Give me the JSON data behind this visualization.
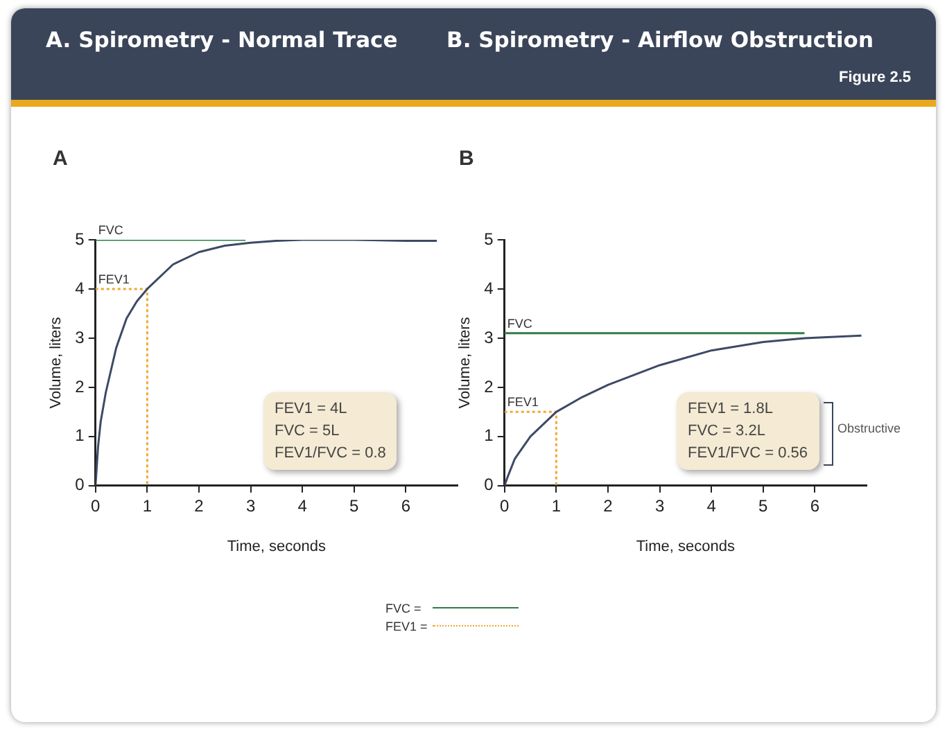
{
  "chart_data": [
    {
      "type": "line",
      "title": "A. Spirometry - Normal Trace",
      "subtitle": "A",
      "xlabel": "Time, seconds",
      "ylabel": "Volume, liters",
      "xlim": [
        0,
        7
      ],
      "ylim": [
        0,
        5
      ],
      "xticks": [
        0,
        1,
        2,
        3,
        4,
        5,
        6
      ],
      "yticks": [
        0,
        1,
        2,
        3,
        4,
        5
      ],
      "grid": false,
      "marker": "none",
      "legend": "bottom",
      "annotations": [
        "FEV1 = 4L\nFVC = 5L\nFEV1/FVC = 0.8",
        {
          "text": "FVC",
          "y": 5
        },
        {
          "text": "FEV1",
          "y": 4
        }
      ],
      "series": [
        {
          "color": "#3d4a66",
          "line_style": "solid",
          "x": [
            0,
            0.05,
            0.1,
            0.2,
            0.4,
            0.6,
            0.8,
            1,
            1.5,
            2,
            2.5,
            3,
            3.5,
            4,
            5,
            6,
            6.6
          ],
          "values": [
            0,
            0.8,
            1.3,
            1.9,
            2.8,
            3.4,
            3.75,
            4,
            4.5,
            4.75,
            4.88,
            4.94,
            4.98,
            5,
            5,
            4.98,
            4.98
          ]
        },
        {
          "name": "FVC =",
          "color": "#2e7d46",
          "line_style": "solid",
          "x": [
            0,
            2.9
          ],
          "values": [
            5,
            5
          ]
        },
        {
          "name": "FEV1 =",
          "color": "#f0a830",
          "line_style": "dotted",
          "x": [
            0,
            1,
            1
          ],
          "values": [
            4,
            4,
            0
          ]
        }
      ]
    },
    {
      "type": "line",
      "title": "B. Spirometry - Airflow Obstruction",
      "subtitle": "B",
      "xlabel": "Time, seconds",
      "ylabel": "Volume, liters",
      "xlim": [
        0,
        7
      ],
      "ylim": [
        0,
        5
      ],
      "xticks": [
        0,
        1,
        2,
        3,
        4,
        5,
        6
      ],
      "yticks": [
        0,
        1,
        2,
        3,
        4,
        5
      ],
      "grid": false,
      "marker": "none",
      "annotations": [
        "FEV1 = 1.8L\nFVC = 3.2L\nFEV1/FVC = 0.56",
        "Obstructive",
        "Figure 2.5",
        {
          "text": "FVC",
          "y": 3.1
        },
        {
          "text": "FEV1",
          "y": 1.5
        }
      ],
      "series": [
        {
          "color": "#3d4a66",
          "line_style": "solid",
          "x": [
            0,
            0.05,
            0.2,
            0.5,
            1,
            1.5,
            2,
            3,
            4,
            5,
            5.8,
            6.9
          ],
          "values": [
            0,
            0.15,
            0.55,
            1,
            1.5,
            1.8,
            2.05,
            2.45,
            2.75,
            2.92,
            3,
            3.05
          ]
        },
        {
          "color": "#2e7d46",
          "line_style": "solid",
          "x": [
            0,
            5.8
          ],
          "values": [
            3.1,
            3.1
          ]
        },
        {
          "color": "#f0a830",
          "line_style": "dotted",
          "x": [
            0,
            1,
            1
          ],
          "values": [
            1.5,
            1.5,
            0
          ]
        }
      ]
    }
  ]
}
